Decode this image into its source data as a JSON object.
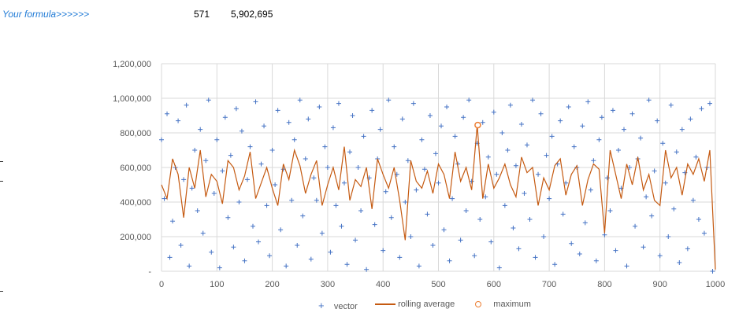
{
  "sheet": {
    "formula_label": "Your formula>>>>>>",
    "value_1": "571",
    "value_2": "5,902,695"
  },
  "chart_data": {
    "type": "scatter",
    "title": "",
    "xlim": [
      0,
      1000
    ],
    "ylim": [
      0,
      1200000
    ],
    "x_ticks": [
      "0",
      "100",
      "200",
      "300",
      "400",
      "500",
      "600",
      "700",
      "800",
      "900",
      "1000"
    ],
    "y_ticks": [
      "-",
      "200,000",
      "400,000",
      "600,000",
      "800,000",
      "1,000,000",
      "1,200,000"
    ],
    "grid": true,
    "legend_position": "bottom",
    "legend": [
      "vector",
      "rolling average",
      "maximum"
    ],
    "colors": {
      "vector": "#4472c4",
      "rolling": "#c55a11",
      "maximum": "#ed7d31"
    },
    "y_multiplier": 1000,
    "vector": {
      "x_step": 5,
      "values": [
        760,
        420,
        910,
        80,
        290,
        600,
        870,
        150,
        530,
        960,
        30,
        480,
        700,
        350,
        820,
        220,
        640,
        990,
        110,
        450,
        760,
        20,
        580,
        890,
        310,
        670,
        140,
        940,
        400,
        810,
        60,
        530,
        720,
        260,
        980,
        170,
        620,
        840,
        380,
        90,
        700,
        500,
        930,
        240,
        590,
        30,
        860,
        410,
        760,
        150,
        990,
        320,
        650,
        880,
        70,
        540,
        410,
        950,
        220,
        720,
        600,
        110,
        830,
        380,
        970,
        260,
        510,
        40,
        690,
        900,
        180,
        600,
        350,
        780,
        10,
        540,
        930,
        270,
        650,
        820,
        120,
        460,
        990,
        310,
        720,
        560,
        80,
        880,
        400,
        640,
        200,
        970,
        470,
        30,
        760,
        590,
        330,
        900,
        150,
        680,
        510,
        840,
        240,
        950,
        60,
        420,
        780,
        620,
        180,
        890,
        350,
        990,
        520,
        90,
        740,
        300,
        860,
        430,
        660,
        170,
        920,
        560,
        20,
        800,
        380,
        700,
        960,
        250,
        610,
        130,
        850,
        450,
        730,
        300,
        990,
        80,
        560,
        910,
        200,
        670,
        420,
        780,
        40,
        620,
        870,
        330,
        510,
        950,
        160,
        720,
        600,
        100,
        840,
        280,
        980,
        470,
        640,
        60,
        760,
        890,
        210,
        540,
        350,
        930,
        120,
        700,
        480,
        820,
        30,
        600,
        910,
        260,
        650,
        770,
        140,
        430,
        990,
        320,
        580,
        870,
        90,
        740,
        510,
        200,
        960,
        360,
        690,
        50,
        820,
        570,
        130,
        880,
        410,
        660,
        300,
        940,
        220,
        600,
        970,
        0
      ]
    },
    "rolling_average": {
      "x_step": 10,
      "values": [
        500,
        420,
        650,
        560,
        310,
        600,
        480,
        700,
        430,
        560,
        520,
        390,
        640,
        600,
        470,
        550,
        690,
        420,
        510,
        600,
        480,
        380,
        620,
        530,
        700,
        610,
        450,
        560,
        640,
        380,
        500,
        600,
        470,
        720,
        410,
        530,
        490,
        600,
        360,
        650,
        560,
        480,
        600,
        410,
        180,
        640,
        520,
        480,
        580,
        450,
        620,
        560,
        420,
        690,
        520,
        600,
        470,
        845,
        420,
        620,
        480,
        540,
        620,
        500,
        430,
        660,
        570,
        600,
        380,
        540,
        470,
        610,
        650,
        440,
        560,
        610,
        380,
        530,
        620,
        590,
        220,
        700,
        560,
        420,
        620,
        500,
        660,
        470,
        560,
        410,
        380,
        700,
        540,
        600,
        440,
        620,
        560,
        650,
        520,
        700,
        10
      ]
    },
    "maximum": {
      "x": 571,
      "y": 845
    }
  }
}
